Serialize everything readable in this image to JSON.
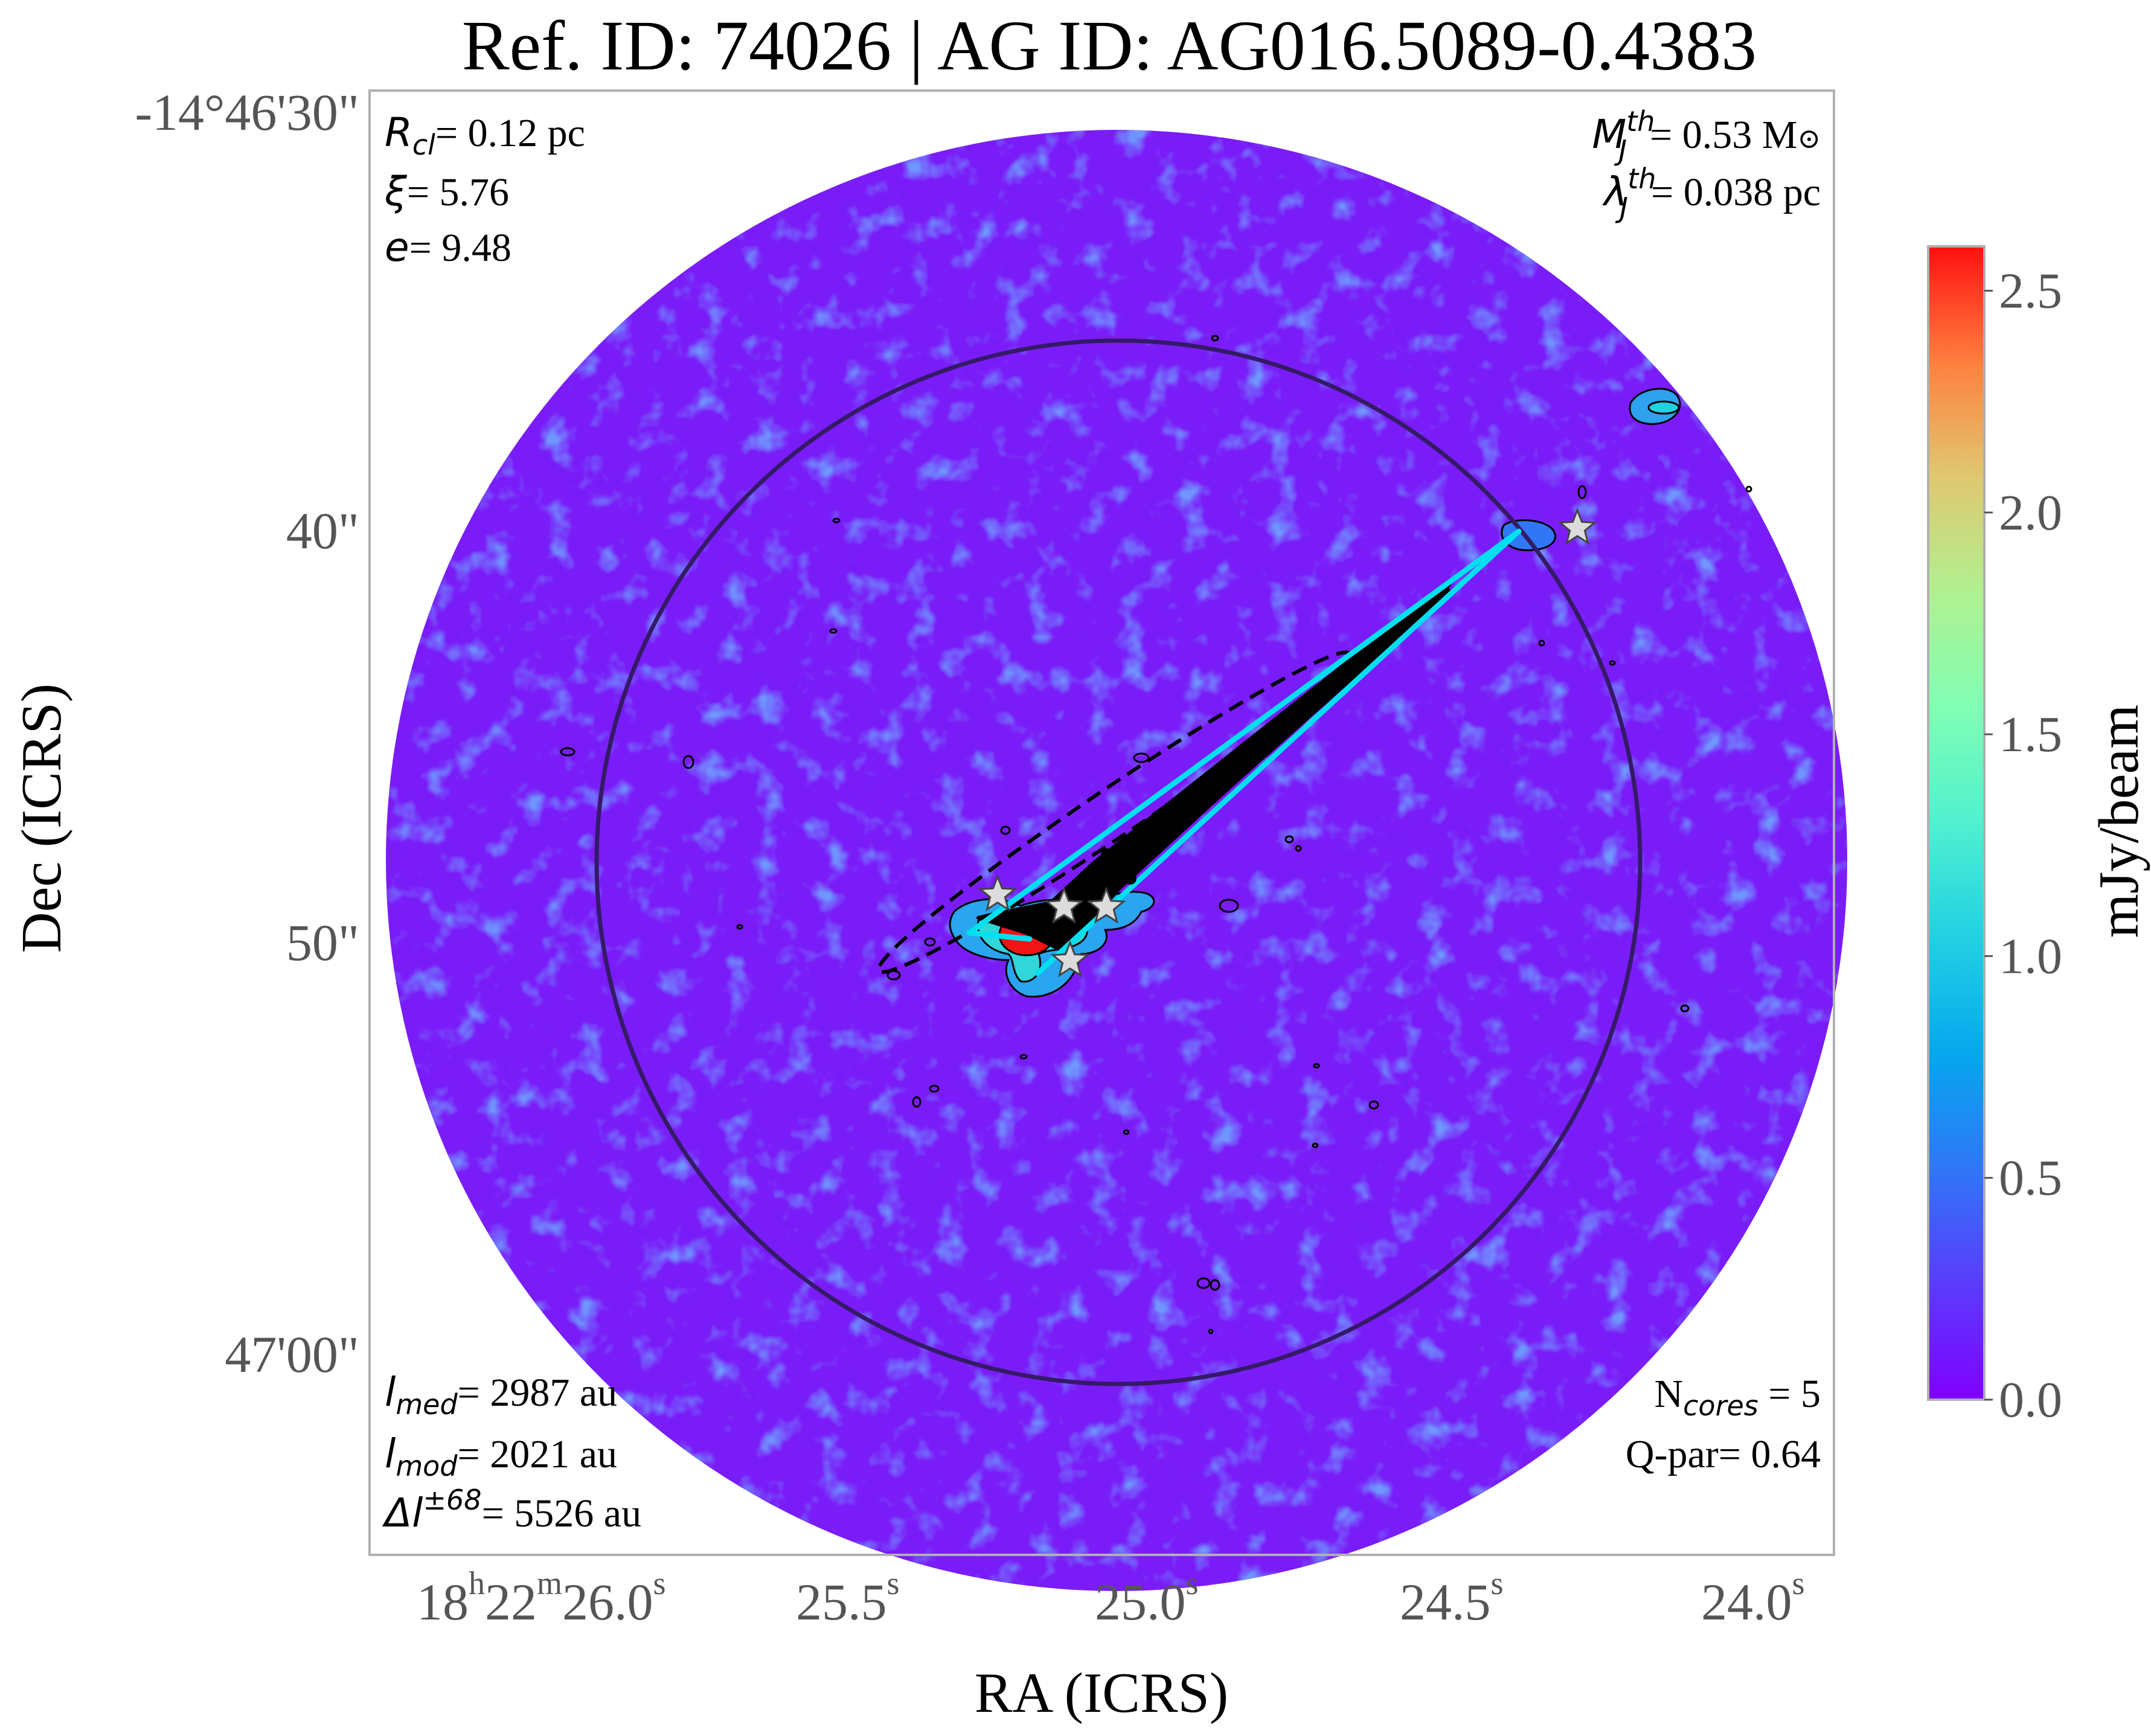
{
  "chart_data": {
    "type": "heatmap",
    "title": "Ref. ID: 74026 | AG ID: AG016.5089-0.4383",
    "xlabel": "RA (ICRS)",
    "ylabel": "Dec (ICRS)",
    "x_ticks": [
      {
        "ra_s": 26.0,
        "label": [
          "18",
          "h",
          "22",
          "m",
          "26.0",
          "s"
        ]
      },
      {
        "ra_s": 25.5,
        "label": [
          "",
          "",
          "",
          "",
          "25.5",
          "s"
        ]
      },
      {
        "ra_s": 25.0,
        "label": [
          "",
          "",
          "",
          "",
          "25.0",
          "s"
        ]
      },
      {
        "ra_s": 24.5,
        "label": [
          "",
          "",
          "",
          "",
          "24.5",
          "s"
        ]
      },
      {
        "ra_s": 24.0,
        "label": [
          "",
          "",
          "",
          "",
          "24.0",
          "s"
        ]
      }
    ],
    "y_ticks": [
      {
        "dec_arcsec_below_46m": 30,
        "label": "-14°46'30\""
      },
      {
        "dec_arcsec_below_46m": 40,
        "label": "40\""
      },
      {
        "dec_arcsec_below_46m": 50,
        "label": "50\""
      },
      {
        "dec_arcsec_below_46m": 60,
        "label": "47'00\""
      }
    ],
    "colorbar": {
      "label": "mJy/beam",
      "min": 0.0,
      "max": 2.6,
      "ticks": [
        "0.0",
        "0.5",
        "1.0",
        "1.5",
        "2.0",
        "2.5"
      ],
      "colormap": "rainbow"
    },
    "annotations_top_left": [
      {
        "sym": "R",
        "sub": "cl",
        "sup": "",
        "rest": "= 0.12 pc"
      },
      {
        "sym": "ξ",
        "sub": "",
        "sup": "",
        "rest": "= 5.76"
      },
      {
        "sym": "e",
        "sub": "",
        "sup": "",
        "rest": "= 9.48"
      }
    ],
    "annotations_top_right": [
      {
        "sym": "M",
        "sub": "J",
        "sup": "th",
        "rest": "= 0.53 M",
        "tail": "⊙"
      },
      {
        "sym": "λ",
        "sub": "J",
        "sup": "th",
        "rest": "= 0.038 pc",
        "tail": ""
      }
    ],
    "annotations_bottom_left": [
      {
        "sym": "l",
        "sub": "med",
        "sup": "",
        "rest": "= 2987 au"
      },
      {
        "sym": "l",
        "sub": "mod",
        "sup": "",
        "rest": "= 2021 au"
      },
      {
        "sym": "Δl",
        "sub": "",
        "sup": "±68",
        "rest": "= 5526 au"
      }
    ],
    "annotations_bottom_right": {
      "ncores_prefix": "N",
      "ncores_sub": "cores",
      "ncores_rest": " = 5",
      "qpar": "Q-par= 0.64"
    },
    "cores": [
      {
        "ra_s": 25.31,
        "dec_arcsec_below_46m": 49.0
      },
      {
        "ra_s": 25.2,
        "dec_arcsec_below_46m": 49.3
      },
      {
        "ra_s": 25.13,
        "dec_arcsec_below_46m": 49.3
      },
      {
        "ra_s": 25.19,
        "dec_arcsec_below_46m": 50.6
      },
      {
        "ra_s": 24.35,
        "dec_arcsec_below_46m": 40.1
      }
    ],
    "cluster_center": {
      "ra_s": 25.02,
      "dec_arcsec_below_46m": 47.3
    },
    "bright_clump": {
      "ra_s": 25.21,
      "dec_arcsec_below_46m": 49.1,
      "peak_mJy_per_beam": 2.5
    },
    "secondary_source": {
      "ra_s": 24.14,
      "dec_arcsec_below_46m": 36.2
    }
  },
  "colors": {
    "map_background": "#7a1cf7",
    "mst_edges": "#00e0f0",
    "cluster_circle": "#341a66",
    "clump_peak": "#f01414",
    "core_marker": "#dcdcdc"
  }
}
